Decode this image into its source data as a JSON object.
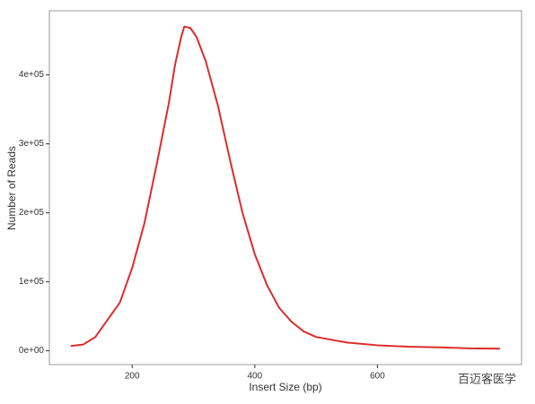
{
  "chart_data": {
    "type": "line",
    "x_label": "Insert Size (bp)",
    "y_label": "Number of Reads",
    "watermark": "百迈客医学",
    "x": [
      100,
      120,
      140,
      160,
      180,
      200,
      220,
      240,
      260,
      270,
      280,
      285,
      295,
      305,
      320,
      340,
      360,
      380,
      400,
      420,
      440,
      460,
      480,
      500,
      550,
      600,
      650,
      700,
      750,
      800
    ],
    "series": [
      {
        "name": "reads",
        "color": "#dd2c2c",
        "values": [
          7000,
          9000,
          20000,
          45000,
          70000,
          120000,
          185000,
          270000,
          360000,
          415000,
          455000,
          470000,
          468000,
          455000,
          420000,
          355000,
          275000,
          200000,
          140000,
          95000,
          62000,
          42000,
          28000,
          20000,
          12000,
          8000,
          6000,
          5000,
          3500,
          3000
        ]
      }
    ],
    "xlim": [
      65,
      835
    ],
    "xticks": [
      200,
      400,
      600
    ],
    "ylim": [
      -20000,
      493000
    ],
    "yticks": [
      {
        "value": 0,
        "label": "0e+00"
      },
      {
        "value": 100000,
        "label": "1e+05"
      },
      {
        "value": 200000,
        "label": "2e+05"
      },
      {
        "value": 300000,
        "label": "3e+05"
      },
      {
        "value": 400000,
        "label": "4e+05"
      }
    ],
    "grid": false
  }
}
